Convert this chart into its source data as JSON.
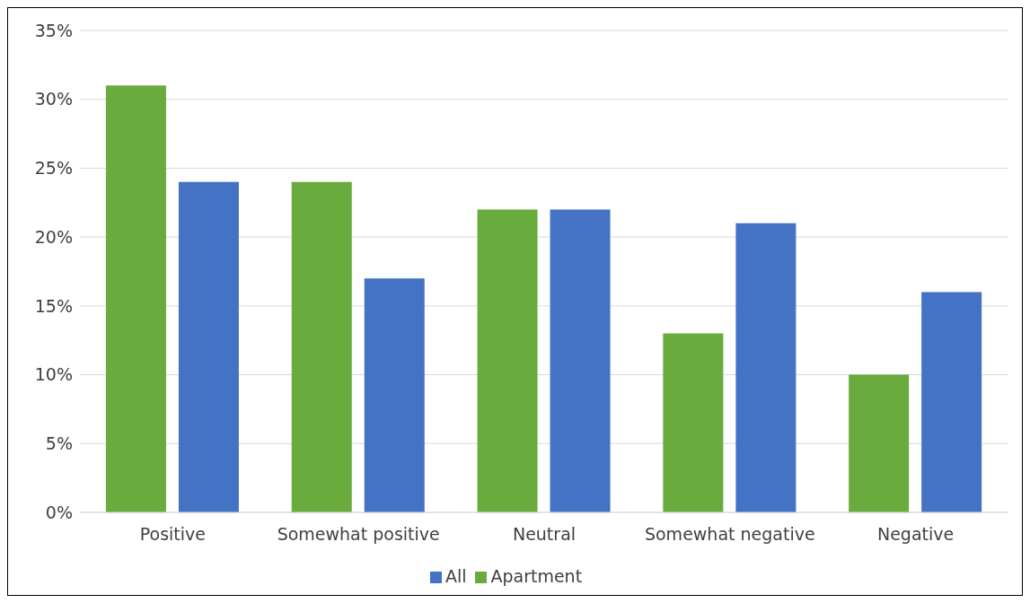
{
  "chart_data": {
    "type": "bar",
    "categories": [
      "Positive",
      "Somewhat positive",
      "Neutral",
      "Somewhat negative",
      "Negative"
    ],
    "series": [
      {
        "name": "Apartment",
        "color": "#6aab3e",
        "values": [
          31,
          24,
          22,
          13,
          10
        ]
      },
      {
        "name": "All",
        "color": "#4472c4",
        "values": [
          24,
          17,
          22,
          21,
          16
        ]
      }
    ],
    "ylim": [
      0,
      35
    ],
    "yticks": [
      {
        "value": 0,
        "label": "0%"
      },
      {
        "value": 5,
        "label": "5%"
      },
      {
        "value": 10,
        "label": "10%"
      },
      {
        "value": 15,
        "label": "15%"
      },
      {
        "value": 20,
        "label": "20%"
      },
      {
        "value": 25,
        "label": "25%"
      },
      {
        "value": 30,
        "label": "30%"
      },
      {
        "value": 35,
        "label": "35%"
      }
    ],
    "grid": "y",
    "legend": "bottom"
  }
}
